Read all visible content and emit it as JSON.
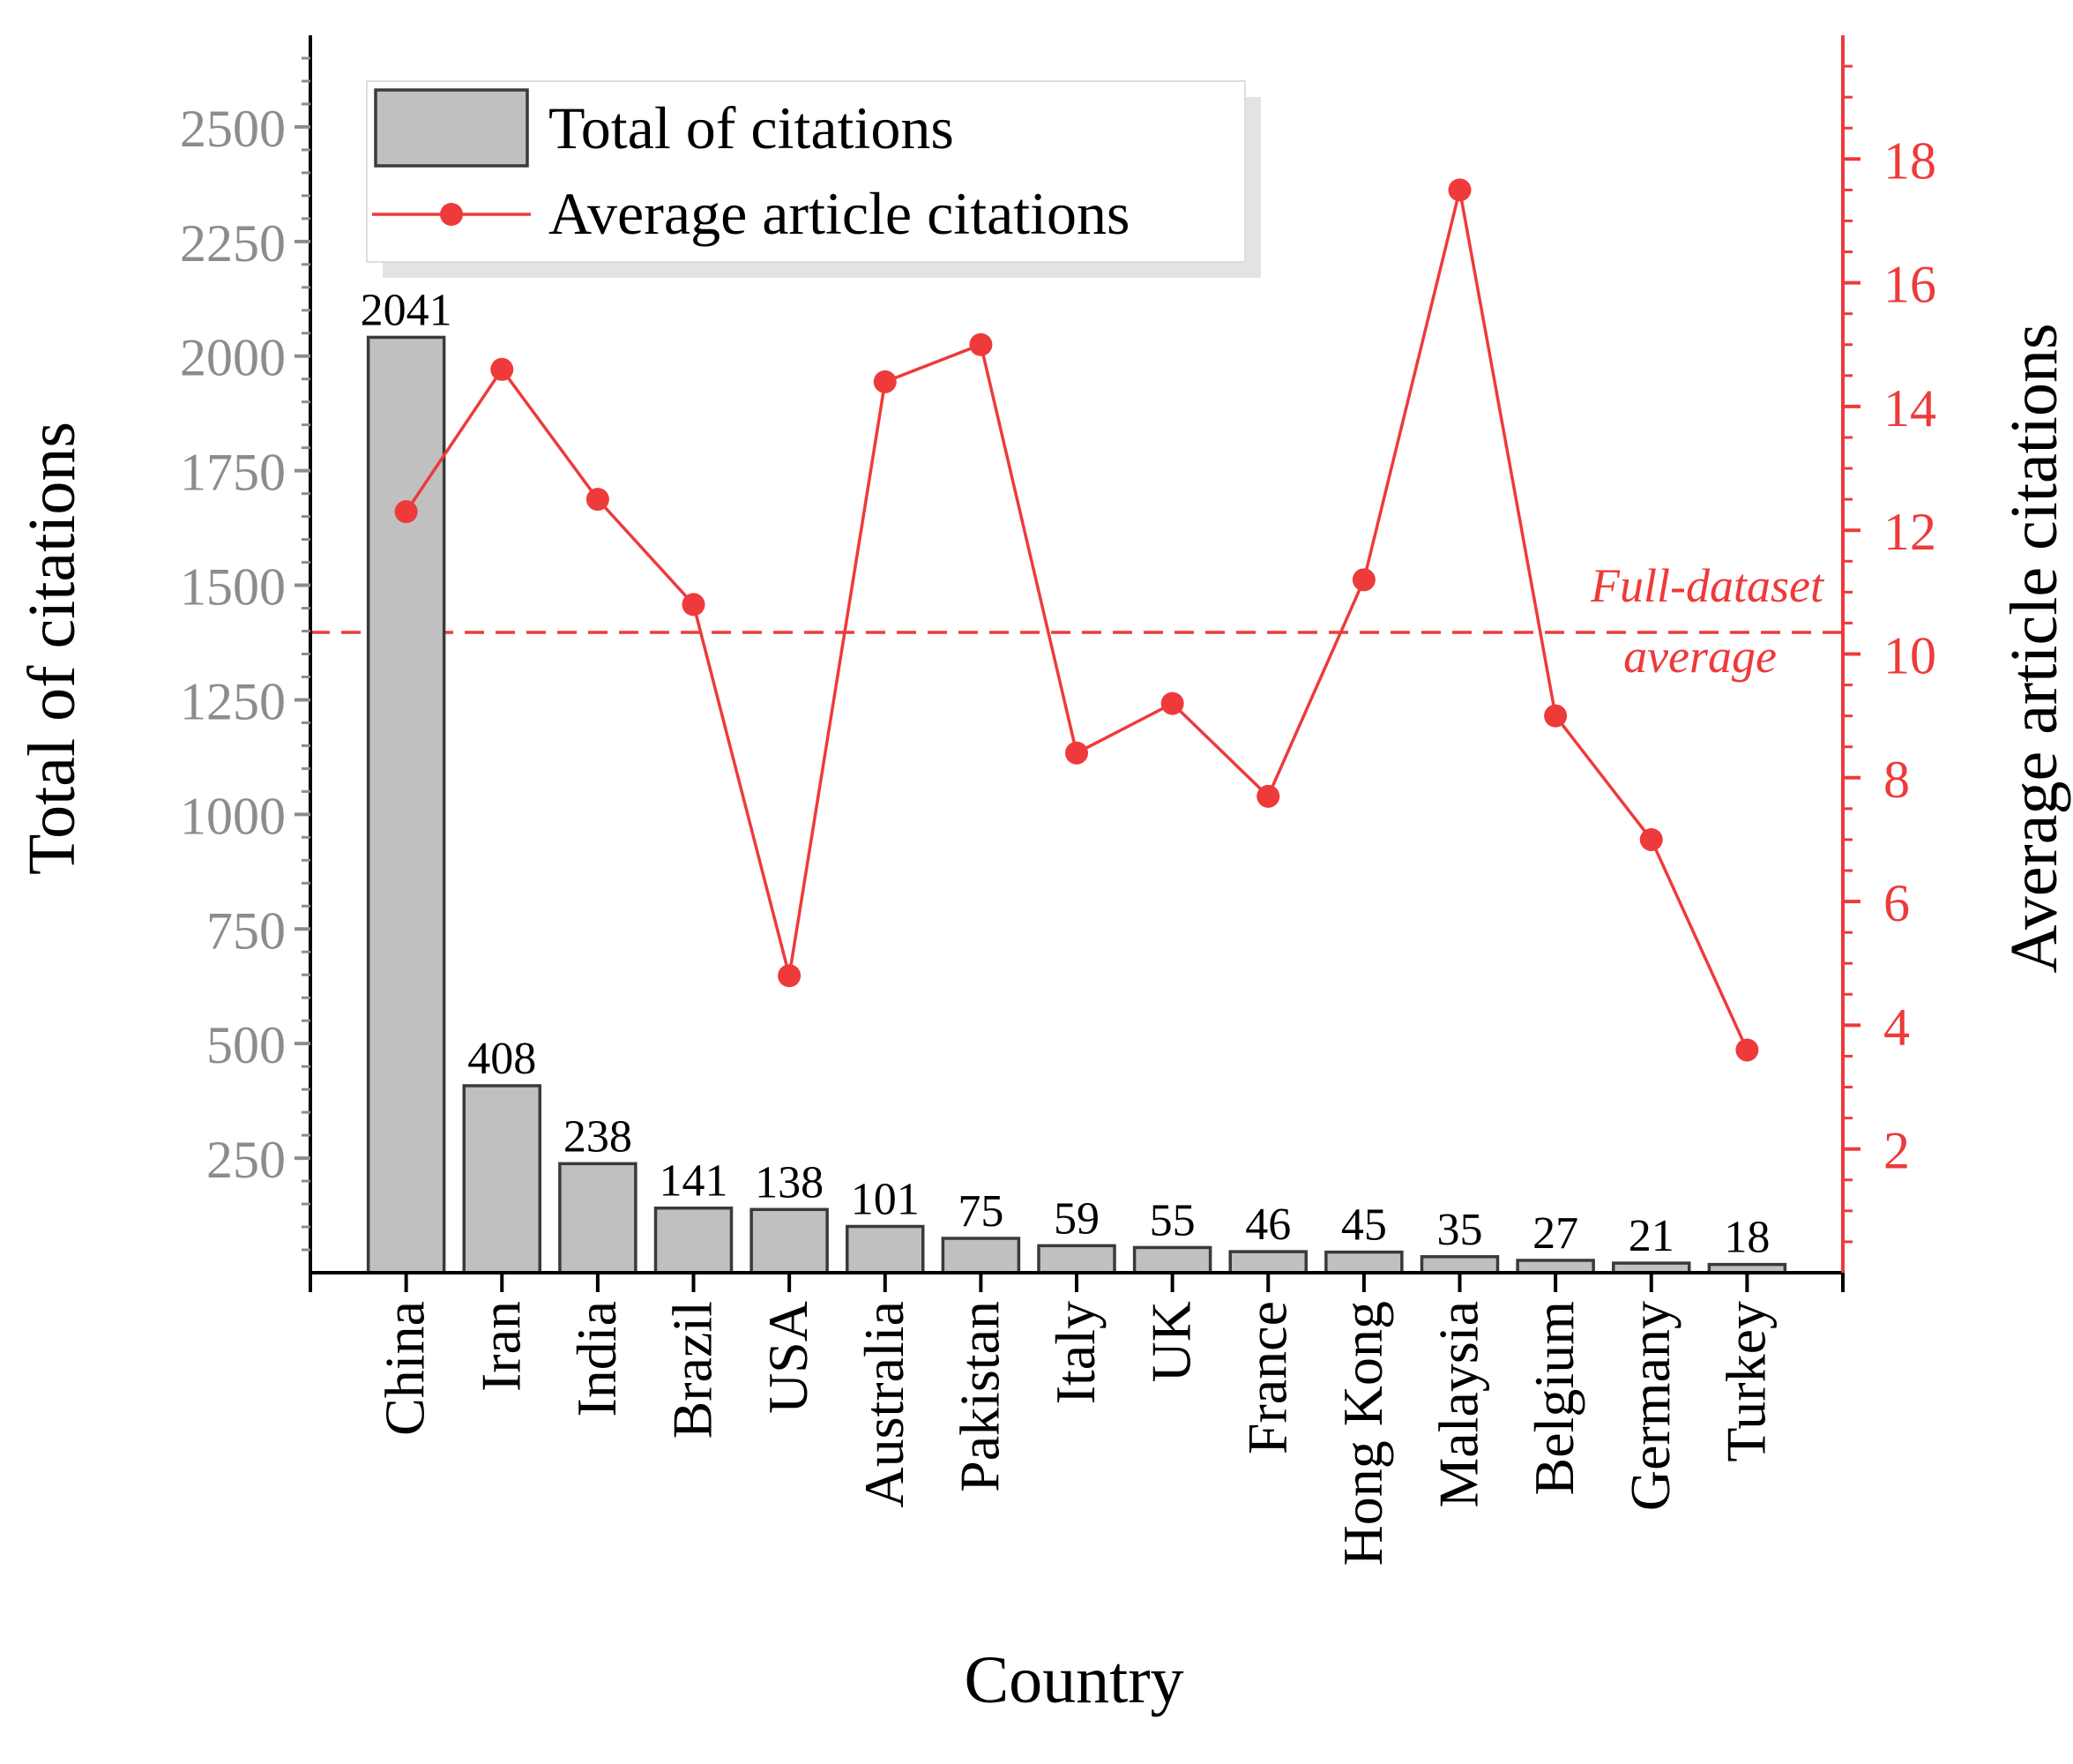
{
  "chart_data": {
    "type": "bar+line",
    "categories": [
      "China",
      "Iran",
      "India",
      "Brazil",
      "USA",
      "Australia",
      "Pakistan",
      "Italy",
      "UK",
      "France",
      "Hong Kong",
      "Malaysia",
      "Belgium",
      "Germany",
      "Turkey"
    ],
    "series": [
      {
        "name": "Total of citations",
        "type": "bar",
        "axis": "left",
        "values": [
          2041,
          408,
          238,
          141,
          138,
          101,
          75,
          59,
          55,
          46,
          45,
          35,
          27,
          21,
          18
        ],
        "data_labels": [
          "2041",
          "408",
          "238",
          "141",
          "138",
          "101",
          "75",
          "59",
          "55",
          "46",
          "45",
          "35",
          "27",
          "21",
          "18"
        ]
      },
      {
        "name": "Average article citations",
        "type": "line",
        "axis": "right",
        "values": [
          12.3,
          14.6,
          12.5,
          10.8,
          4.8,
          14.4,
          15.0,
          8.4,
          9.2,
          7.7,
          11.2,
          17.5,
          9.0,
          7.0,
          3.6
        ]
      }
    ],
    "reference_line": {
      "value": 10.35,
      "axis": "right",
      "label_line1": "Full-dataset",
      "label_line2": "average"
    },
    "xlabel": "Country",
    "ylabel_left": "Total of citations",
    "ylabel_right": "Average article citations",
    "ylim_left": [
      0,
      2700
    ],
    "ylim_right": [
      0,
      20
    ],
    "left_ticks": [
      "250",
      "500",
      "750",
      "1000",
      "1250",
      "1500",
      "1750",
      "2000",
      "2250",
      "2500"
    ],
    "right_ticks": [
      "2",
      "4",
      "6",
      "8",
      "10",
      "12",
      "14",
      "16",
      "18"
    ],
    "legend": {
      "position": "top-left",
      "entries": [
        "Total of citations",
        "Average article citations"
      ]
    },
    "colors": {
      "bar_fill": "#c0c0c0",
      "bar_stroke": "#3a3a3a",
      "line": "#ee3a3a",
      "left_axis_text": "#8c8c8c",
      "axis": "#000000"
    }
  }
}
